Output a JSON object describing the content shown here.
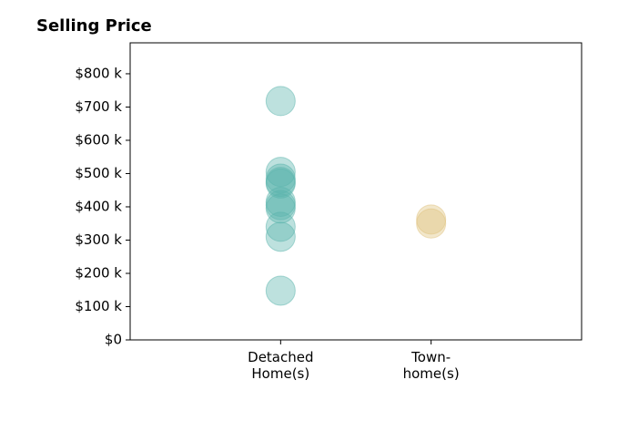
{
  "chart_data": {
    "type": "strip",
    "title": "Selling Price",
    "categories": [
      "Detached\nHome(s)",
      "Town-\nhome(s)"
    ],
    "series": [
      {
        "color": "#5ab4ac",
        "values": [
          718000,
          505000,
          485000,
          475000,
          470000,
          415000,
          405000,
          395000,
          340000,
          310000,
          148000
        ]
      },
      {
        "color": "#dfc27d",
        "values": [
          362000,
          350000
        ]
      }
    ],
    "xlim": [
      0,
      3
    ],
    "ylim": [
      0,
      893000
    ],
    "yticks": [
      {
        "value": 0,
        "label": "$0"
      },
      {
        "value": 100000,
        "label": "$100 k"
      },
      {
        "value": 200000,
        "label": "$200 k"
      },
      {
        "value": 300000,
        "label": "$300 k"
      },
      {
        "value": 400000,
        "label": "$400 k"
      },
      {
        "value": 500000,
        "label": "$500 k"
      },
      {
        "value": 600000,
        "label": "$600 k"
      },
      {
        "value": 700000,
        "label": "$700 k"
      },
      {
        "value": 800000,
        "label": "$800 k"
      }
    ]
  }
}
